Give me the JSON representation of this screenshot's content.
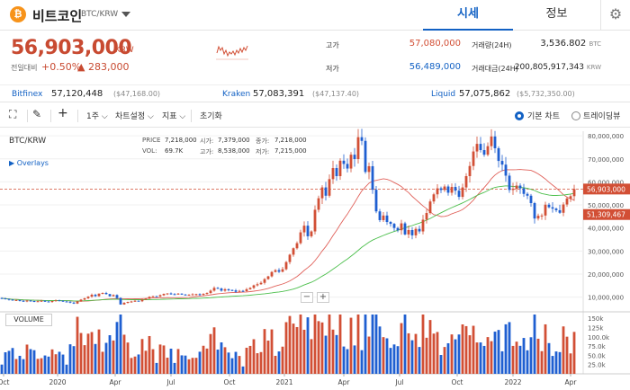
{
  "header": {
    "coin_logo": "₿",
    "coin_name": "비트코인",
    "coin_pair": "BTC/KRW",
    "tabs": [
      {
        "label": "시세",
        "active": true
      },
      {
        "label": "정보",
        "active": false
      }
    ],
    "settings_icon": "gear-icon"
  },
  "ticker": {
    "price": "56,903,000",
    "unit": "KRW",
    "change_label": "전일대비",
    "change_pct": "+0.50%",
    "change_amt": "▲ 283,000",
    "high_label": "고가",
    "high_value": "57,080,000",
    "low_label": "저가",
    "low_value": "56,489,000",
    "vol_label": "거래량(24H)",
    "vol_value": "3,536.802",
    "vol_unit": "BTC",
    "amt_label": "거래대금(24H)",
    "amt_value": "200,805,917,343",
    "amt_unit": "KRW"
  },
  "exchanges": [
    {
      "name": "Bitfinex",
      "price": "57,120,448",
      "krw": "($47,168.00)"
    },
    {
      "name": "Kraken",
      "price": "57,083,391",
      "krw": "($47,137.40)"
    },
    {
      "name": "Liquid",
      "price": "57,075,862",
      "krw": "($5,732,350.00)"
    }
  ],
  "toolbar": {
    "period": "1주",
    "chart_settings": "차트설정",
    "indicators": "지표",
    "reset": "초기화",
    "basic_chart": "기본 차트",
    "tradingview": "트레이딩뷰"
  },
  "chart": {
    "pair": "BTC/KRW",
    "overlays": "▶ Overlays",
    "info": {
      "price_label": "PRICE",
      "price": "7,218,000",
      "open_label": "시가:",
      "open": "7,379,000",
      "close_label": "종가:",
      "close": "7,218,000",
      "vol_label": "VOL:",
      "vol": "69.7K",
      "high_label": "고가:",
      "high": "8,538,000",
      "low_label": "저가:",
      "low": "7,215,000"
    },
    "volume_label": "VOLUME",
    "current_price_tag": "56,903,000",
    "ma_tag": "51,309,467",
    "zoom_minus": "−",
    "zoom_plus": "+",
    "colors": {
      "up": "#d24f35",
      "down": "#1f5fd1",
      "ma_short": "#e0615a",
      "ma_long": "#4cbf4c"
    }
  },
  "chart_data": {
    "type": "candlestick",
    "y_ticks": [
      "80,000,000",
      "70,000,000",
      "60,000,000",
      "50,000,000",
      "40,000,000",
      "30,000,000",
      "20,000,000",
      "10,000,000"
    ],
    "ylim": [
      4000000,
      82000000
    ],
    "vol_ticks": [
      "150k",
      "125k",
      "100.0k",
      "75.0k",
      "50.0k",
      "25.0k"
    ],
    "x_ticks": [
      "Oct",
      "2020",
      "Apr",
      "Jul",
      "Oct",
      "2021",
      "Apr",
      "Jul",
      "Oct",
      "2022",
      "Apr"
    ],
    "close": [
      9.5,
      9.2,
      8.9,
      8.6,
      8.7,
      8.4,
      8.2,
      8.5,
      8.3,
      8.0,
      8.2,
      8.4,
      8.1,
      7.9,
      8.3,
      8.6,
      8.4,
      8.1,
      8.0,
      7.6,
      7.2,
      8.1,
      8.9,
      9.5,
      10.2,
      11.0,
      10.4,
      11.5,
      11.8,
      11.3,
      10.4,
      10.9,
      9.6,
      6.8,
      7.5,
      7.9,
      8.1,
      8.4,
      8.2,
      8.9,
      9.3,
      10.1,
      10.4,
      10.2,
      10.8,
      11.4,
      11.6,
      11.3,
      11.2,
      11.5,
      11.1,
      10.9,
      11.0,
      11.2,
      11.3,
      11.0,
      11.4,
      11.8,
      12.8,
      14.0,
      13.7,
      12.8,
      13.4,
      13.1,
      12.9,
      12.3,
      12.7,
      12.6,
      13.4,
      14.0,
      15.1,
      15.6,
      16.2,
      17.8,
      19.0,
      20.9,
      21.7,
      21.0,
      22.1,
      25.2,
      28.4,
      31.2,
      33.4,
      38.1,
      41.0,
      36.4,
      38.5,
      47.9,
      52.9,
      57.6,
      54.0,
      61.2,
      66.0,
      62.5,
      69.2,
      67.8,
      65.8,
      71.8,
      69.9,
      79.4,
      77.8,
      64.3,
      66.8,
      56.6,
      47.2,
      43.4,
      45.4,
      42.6,
      41.8,
      40.0,
      39.0,
      42.0,
      37.2,
      39.1,
      36.8,
      39.6,
      38.5,
      43.6,
      46.5,
      51.5,
      54.6,
      57.2,
      56.5,
      58.0,
      55.3,
      57.8,
      56.2,
      53.5,
      57.6,
      62.5,
      66.9,
      73.2,
      76.5,
      73.8,
      71.8,
      75.5,
      79.7,
      74.6,
      69.1,
      67.5,
      62.7,
      56.5,
      57.0,
      58.4,
      57.2,
      54.8,
      54.0,
      50.8,
      44.1,
      45.3,
      45.4,
      50.1,
      49.0,
      48.4,
      47.7,
      46.6,
      50.2,
      52.8,
      53.8,
      56.9
    ]
  }
}
